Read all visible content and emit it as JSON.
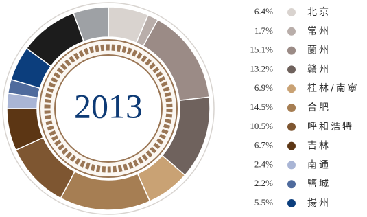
{
  "chart_data": {
    "type": "donut",
    "center_label": "2013",
    "categories": [
      "北京",
      "常州",
      "蘭州",
      "贛州",
      "桂林/南寧",
      "合肥",
      "呼和浩特",
      "吉林",
      "南通",
      "鹽城",
      "揚州",
      null,
      null
    ],
    "values": [
      6.4,
      1.7,
      15.1,
      13.2,
      6.9,
      14.5,
      10.5,
      6.7,
      2.4,
      2.2,
      5.5,
      9.3,
      5.6
    ],
    "value_labels": [
      "6.4%",
      "1.7%",
      "15.1%",
      "13.2%",
      "6.9%",
      "14.5%",
      "10.5%",
      "6.7%",
      "2.4%",
      "2.2%",
      "5.5%",
      null,
      null
    ],
    "colors": [
      "#d9d3cf",
      "#b9aeaa",
      "#9b8b86",
      "#6f625d",
      "#c9a274",
      "#a67e53",
      "#7e5631",
      "#5c3614",
      "#a9b5d5",
      "#4f6b9d",
      "#0c3e7d",
      "#1c1c1c",
      "#9ea1a5"
    ]
  }
}
